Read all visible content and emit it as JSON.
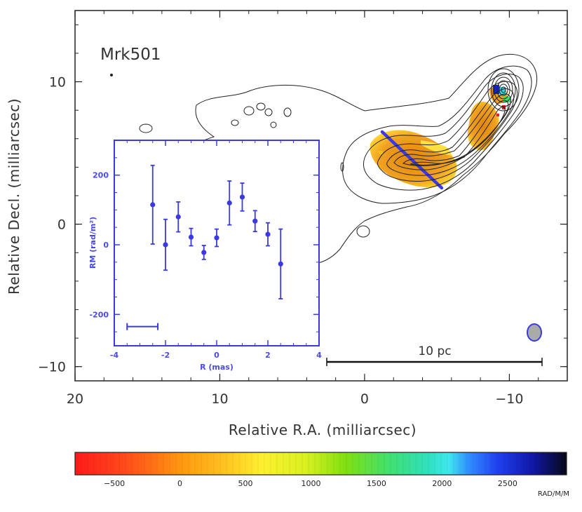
{
  "chart_data": [
    {
      "type": "scatter",
      "subtype": "radio-map",
      "title": "Mrk501",
      "xlabel": "Relative R.A. (milliarcsec)",
      "ylabel": "Relative Decl. (milliarcsec)",
      "xlim": [
        20,
        -14
      ],
      "ylim": [
        -11,
        15
      ],
      "x_ticks": [
        20,
        10,
        0,
        -10
      ],
      "x_tick_labels": [
        "20",
        "10",
        "0",
        "−10"
      ],
      "y_ticks": [
        10,
        0,
        -10
      ],
      "y_tick_labels": [
        "10",
        "0",
        "−10"
      ],
      "scale_bar_label": "10 pc",
      "annotations": [
        "contours of total intensity",
        "rotation measure colour overlay",
        "beam ellipse at bottom-right",
        "blue slice line across jet"
      ]
    },
    {
      "type": "scatter",
      "title": "",
      "xlabel": "R (mas)",
      "ylabel": "RM (rad/m²)",
      "xlim": [
        -4,
        4
      ],
      "ylim": [
        -290,
        300
      ],
      "x_ticks": [
        -4,
        -2,
        0,
        2,
        4
      ],
      "x_tick_labels": [
        "-4",
        "-2",
        "0",
        "2",
        "4"
      ],
      "y_ticks": [
        -200,
        0,
        200
      ],
      "y_tick_labels": [
        "-200",
        "0",
        "200"
      ],
      "x": [
        -2.5,
        -2.0,
        -1.5,
        -1.0,
        -0.5,
        0.0,
        0.5,
        1.0,
        1.5,
        2.0,
        2.5
      ],
      "y": [
        115,
        0,
        80,
        22,
        -22,
        20,
        120,
        137,
        68,
        30,
        -55
      ],
      "err": [
        113,
        73,
        43,
        25,
        20,
        25,
        63,
        40,
        30,
        33,
        100
      ],
      "resolution_bar": [
        -3.5,
        -2.3
      ]
    },
    {
      "type": "heatmap",
      "subtype": "colorbar",
      "title": "",
      "xlim": [
        -800,
        2950
      ],
      "ticks": [
        -500,
        0,
        500,
        1000,
        1500,
        2000,
        2500
      ],
      "tick_labels": [
        "−500",
        "0",
        "500",
        "1000",
        "1500",
        "2000",
        "2500"
      ],
      "unit_label": "RAD/M/M"
    }
  ]
}
